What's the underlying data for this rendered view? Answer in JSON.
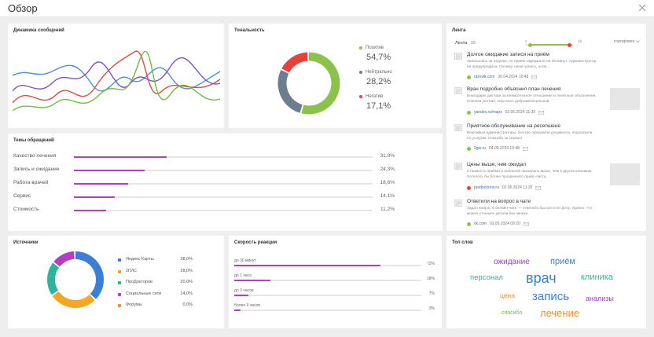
{
  "header": {
    "title": "Обзор"
  },
  "dynamics": {
    "title": "Динамика сообщений",
    "colors": [
      "#4a90d9",
      "#7c52c8",
      "#e14a3c",
      "#6cbf3e"
    ]
  },
  "sentiment": {
    "title": "Тональность",
    "items": [
      {
        "label": "Позитив",
        "value": "54,7%",
        "color": "#8bc34a",
        "share": 54.7
      },
      {
        "label": "Нейтрально",
        "value": "28,2%",
        "color": "#6d7f8e",
        "share": 28.2
      },
      {
        "label": "Негатив",
        "value": "17,1%",
        "color": "#e8413c",
        "share": 17.1
      }
    ]
  },
  "topics": {
    "title": "Темы обращений",
    "items": [
      {
        "label": "Качество лечения",
        "value": "31,8%",
        "share": 31.8
      },
      {
        "label": "Запись и ожидание",
        "value": "24,3%",
        "share": 24.3
      },
      {
        "label": "Работа врачей",
        "value": "18,6%",
        "share": 18.6
      },
      {
        "label": "Сервис",
        "value": "14,1%",
        "share": 14.1
      },
      {
        "label": "Стоимость",
        "value": "11,2%",
        "share": 11.2
      }
    ]
  },
  "sources": {
    "title": "Источники",
    "items": [
      {
        "label": "Яндекс Карты",
        "value": "38,0%",
        "color": "#3a7fd5",
        "share": 38.0
      },
      {
        "label": "2ГИС",
        "value": "28,0%",
        "color": "#f5a623",
        "share": 28.0
      },
      {
        "label": "ПроДокторов",
        "value": "20,0%",
        "color": "#2cb59a",
        "share": 20.0
      },
      {
        "label": "Социальные сети",
        "value": "14,0%",
        "color": "#b63cc8",
        "share": 14.0
      },
      {
        "label": "Форумы",
        "value": "0,0%",
        "color": "#f28c28",
        "share": 0.0
      }
    ]
  },
  "speed": {
    "title": "Скорость реакции",
    "items": [
      {
        "label": "до 30 минут",
        "value": "72%",
        "share": 72
      },
      {
        "label": "до 1 часа",
        "value": "18%",
        "share": 18
      },
      {
        "label": "до 3 часов",
        "value": "7%",
        "share": 7
      },
      {
        "label": "более 3 часов",
        "value": "3%",
        "share": 3
      }
    ]
  },
  "feed": {
    "title": "Лента",
    "label": "Лента",
    "count": "35",
    "range_min": "8",
    "range_max": "12",
    "sort_label": "сортировка",
    "items": [
      {
        "title": "Долгое ожидание записи на приём",
        "text": "Записалась за неделю, но приём задержали на 40 минут. Администратор не предупредила. Почему такая запись, если...",
        "source": "otzovik.com",
        "date": "30.04.2024 10:48",
        "status_color": "#8bc34a",
        "thumb": false
      },
      {
        "title": "Врач подробно объяснил план лечения",
        "text": "Благодарю доктора за внимательное отношение и понятные объяснения. Клиника уютная, персонал доброжелательный.",
        "source": "yandex.ru/maps",
        "date": "02.05.2024 11:35",
        "status_color": "#8bc34a",
        "thumb": true
      },
      {
        "title": "Приятное обслуживание на ресепшене",
        "text": "Вежливые администраторы, быстро оформили документы, подсказали по услугам. Спасибо за сервис!",
        "source": "2gis.ru",
        "date": "04.05.2024 10:48",
        "status_color": "#8bc34a",
        "thumb": false
      },
      {
        "title": "Цены выше, чем ожидал",
        "text": "Стоимость приёма и анализов оказалась выше, чем в других клиниках. Хотелось бы более прозрачного прайс-листа.",
        "source": "prodoctorov.ru",
        "date": "02.05.2024 11:35",
        "status_color": "#e8413c",
        "thumb": true
      },
      {
        "title": "Ответили на вопрос в чате",
        "text": "Задал вопрос в онлайн-чате — ответили быстро и по делу. Удобно, что можно уточнить детали без звонка.",
        "source": "vk.com",
        "date": "03.05.2024 09:20",
        "status_color": "#8bc34a",
        "thumb": false
      }
    ]
  },
  "words": {
    "title": "Топ слов",
    "items": [
      {
        "text": "ожидание",
        "color": "#9c3fc0"
      },
      {
        "text": "приём",
        "color": "#3a7fd5"
      },
      {
        "text": "персонал",
        "color": "#2cb59a"
      },
      {
        "text": "врач",
        "color": "#3a7fd5"
      },
      {
        "text": "клиника",
        "color": "#2cb59a"
      },
      {
        "text": "цена",
        "color": "#f28c28"
      },
      {
        "text": "запись",
        "color": "#3a7fd5"
      },
      {
        "text": "анализы",
        "color": "#9c3fc0"
      },
      {
        "text": "спасибо",
        "color": "#6cbf3e"
      },
      {
        "text": "лечение",
        "color": "#f28c28"
      }
    ]
  }
}
